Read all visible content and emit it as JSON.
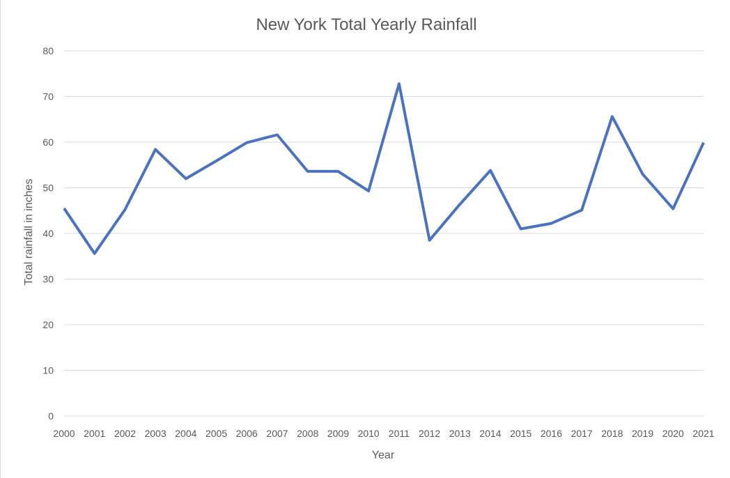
{
  "chart_data": {
    "type": "line",
    "title": "New York Total Yearly Rainfall",
    "xlabel": "Year",
    "ylabel": "Total rainfall in inches",
    "categories": [
      "2000",
      "2001",
      "2002",
      "2003",
      "2004",
      "2005",
      "2006",
      "2007",
      "2008",
      "2009",
      "2010",
      "2011",
      "2012",
      "2013",
      "2014",
      "2015",
      "2016",
      "2017",
      "2018",
      "2019",
      "2020",
      "2021"
    ],
    "series": [
      {
        "values": [
          45.5,
          35.6,
          45.2,
          58.4,
          52.0,
          55.9,
          59.9,
          61.6,
          53.6,
          53.6,
          49.3,
          72.8,
          38.5,
          46.4,
          53.8,
          41.0,
          42.2,
          45.1,
          65.6,
          53.0,
          45.4,
          59.9
        ],
        "color": "#4a72c0"
      }
    ],
    "ylim": [
      0,
      80
    ],
    "y_ticks": [
      "0",
      "10",
      "20",
      "30",
      "40",
      "50",
      "60",
      "70",
      "80"
    ],
    "grid": "horizontal",
    "legend": "none"
  }
}
